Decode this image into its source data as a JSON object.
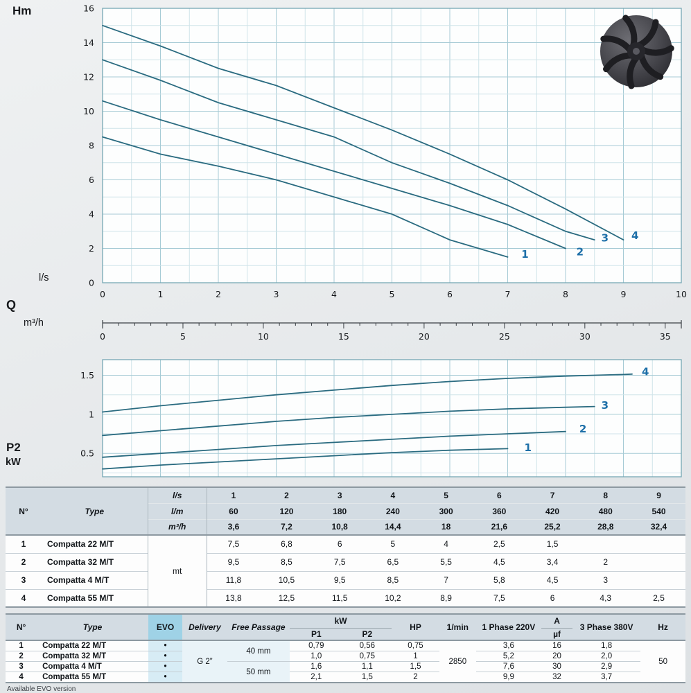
{
  "colors": {
    "curve": "#2a6b80",
    "curve_label": "#1d6fa8",
    "grid_major": "#a6cbd5",
    "grid_minor": "#cfe3e9",
    "axis": "#76a7b4",
    "evo_header": "#9fd2e6"
  },
  "charts": {
    "labels": {
      "head_axis": "Hm",
      "flow_primary_unit": "l/s",
      "flow_symbol": "Q",
      "flow_secondary_unit": "m³/h",
      "power_axis": "P2",
      "power_unit": "kW"
    }
  },
  "chart_data": [
    {
      "type": "line",
      "id": "head",
      "title": "Head vs flow",
      "ylabel": "Hm",
      "xlabel": "Q (l/s)",
      "grid": true,
      "legend_position": "end-of-curve",
      "xlim": [
        0,
        10
      ],
      "ylim": [
        0,
        16
      ],
      "x_major": 1,
      "x_minor": 0.5,
      "y_major": 2,
      "y_minor": 1,
      "x_ticks": [
        0,
        1,
        2,
        3,
        4,
        5,
        6,
        7,
        8,
        9,
        10
      ],
      "x_tick_labels": [
        "0",
        "1",
        "2",
        "3",
        "4",
        "5",
        "6",
        "7",
        "8",
        "9",
        "10"
      ],
      "y_ticks": [
        0,
        2,
        4,
        6,
        8,
        10,
        12,
        14,
        16
      ],
      "y_tick_labels": [
        "0",
        "2",
        "4",
        "6",
        "8",
        "10",
        "12",
        "14",
        "16"
      ],
      "secondary_x": {
        "label": "m³/h",
        "factor": 3.6,
        "major": 5,
        "minor": 1,
        "tick_labels": [
          "0",
          "5",
          "10",
          "15",
          "20",
          "25",
          "30",
          "35"
        ]
      },
      "series": [
        {
          "name": "1",
          "x": [
            0,
            1,
            2,
            3,
            4,
            5,
            6,
            7
          ],
          "y": [
            8.5,
            7.5,
            6.8,
            6,
            5,
            4,
            2.5,
            1.5
          ],
          "label_at": [
            7.3,
            1.45
          ]
        },
        {
          "name": "2",
          "x": [
            0,
            1,
            2,
            3,
            4,
            5,
            6,
            7,
            8
          ],
          "y": [
            10.6,
            9.5,
            8.5,
            7.5,
            6.5,
            5.5,
            4.5,
            3.4,
            2
          ],
          "label_at": [
            8.25,
            1.6
          ]
        },
        {
          "name": "3",
          "x": [
            0,
            1,
            2,
            3,
            4,
            5,
            6,
            7,
            8,
            8.5
          ],
          "y": [
            13,
            11.8,
            10.5,
            9.5,
            8.5,
            7,
            5.8,
            4.5,
            3,
            2.5
          ],
          "label_at": [
            8.68,
            2.4
          ]
        },
        {
          "name": "4",
          "x": [
            0,
            1,
            2,
            3,
            4,
            5,
            6,
            7,
            8,
            9
          ],
          "y": [
            15,
            13.8,
            12.5,
            11.5,
            10.2,
            8.9,
            7.5,
            6,
            4.3,
            2.5
          ],
          "label_at": [
            9.2,
            2.55
          ]
        }
      ]
    },
    {
      "type": "line",
      "id": "power",
      "title": "Shaft power P2 vs flow",
      "ylabel": "P2 kW",
      "grid": true,
      "legend_position": "end-of-curve",
      "xlim": [
        0,
        10
      ],
      "ylim": [
        0.2,
        1.7
      ],
      "x_major": 1,
      "x_minor": 0.5,
      "y_major": 0.5,
      "y_minor": 0.25,
      "y_ticks": [
        0.5,
        1,
        1.5
      ],
      "y_tick_labels": [
        "0.5",
        "1",
        "1.5"
      ],
      "series": [
        {
          "name": "1",
          "x": [
            0,
            1,
            2,
            3,
            4,
            5,
            6,
            7
          ],
          "y": [
            0.3,
            0.35,
            0.39,
            0.43,
            0.47,
            0.51,
            0.54,
            0.56
          ],
          "label_at": [
            7.35,
            0.53
          ]
        },
        {
          "name": "2",
          "x": [
            0,
            1,
            2,
            3,
            4,
            5,
            6,
            7,
            8
          ],
          "y": [
            0.45,
            0.5,
            0.55,
            0.6,
            0.64,
            0.68,
            0.72,
            0.75,
            0.78
          ],
          "label_at": [
            8.3,
            0.77
          ]
        },
        {
          "name": "3",
          "x": [
            0,
            1,
            2,
            3,
            4,
            5,
            6,
            7,
            8,
            8.5
          ],
          "y": [
            0.73,
            0.79,
            0.85,
            0.91,
            0.96,
            1,
            1.04,
            1.07,
            1.09,
            1.1
          ],
          "label_at": [
            8.68,
            1.07
          ]
        },
        {
          "name": "4",
          "x": [
            0,
            1,
            2,
            3,
            4,
            5,
            6,
            7,
            8,
            9,
            9.15
          ],
          "y": [
            1.03,
            1.11,
            1.18,
            1.25,
            1.31,
            1.37,
            1.42,
            1.46,
            1.49,
            1.51,
            1.515
          ],
          "label_at": [
            9.38,
            1.5
          ]
        }
      ]
    }
  ],
  "table1": {
    "col_headers": {
      "no": "N°",
      "type": "Type",
      "unit_rows": [
        "l/s",
        "l/m",
        "m³/h"
      ],
      "ls": [
        "1",
        "2",
        "3",
        "4",
        "5",
        "6",
        "7",
        "8",
        "9"
      ],
      "lm": [
        "60",
        "120",
        "180",
        "240",
        "300",
        "360",
        "420",
        "480",
        "540"
      ],
      "m3h": [
        "3,6",
        "7,2",
        "10,8",
        "14,4",
        "18",
        "21,6",
        "25,2",
        "28,8",
        "32,4"
      ]
    },
    "unit_label": "mt",
    "rows": [
      {
        "no": "1",
        "type": "Compatta 22 M/T",
        "values": [
          "7,5",
          "6,8",
          "6",
          "5",
          "4",
          "2,5",
          "1,5",
          "",
          ""
        ]
      },
      {
        "no": "2",
        "type": "Compatta 32 M/T",
        "values": [
          "9,5",
          "8,5",
          "7,5",
          "6,5",
          "5,5",
          "4,5",
          "3,4",
          "2",
          ""
        ]
      },
      {
        "no": "3",
        "type": "Compatta 4 M/T",
        "values": [
          "11,8",
          "10,5",
          "9,5",
          "8,5",
          "7",
          "5,8",
          "4,5",
          "3",
          ""
        ]
      },
      {
        "no": "4",
        "type": "Compatta 55 M/T",
        "values": [
          "13,8",
          "12,5",
          "11,5",
          "10,2",
          "8,9",
          "7,5",
          "6",
          "4,3",
          "2,5"
        ]
      }
    ]
  },
  "table2": {
    "headers": {
      "no": "N°",
      "type": "Type",
      "evo": "EVO",
      "delivery": "Delivery",
      "free_passage": "Free Passage",
      "kw": "kW",
      "p1": "P1",
      "p2": "P2",
      "hp": "HP",
      "rpm": "1/min",
      "phase1": "1 Phase 220V",
      "amp": "A",
      "uf": "µf",
      "phase3": "3 Phase 380V",
      "hz": "Hz"
    },
    "shared": {
      "delivery": "G 2”",
      "rpm": "2850",
      "hz": "50",
      "free_passage": [
        {
          "label": "40 mm",
          "rows": 2
        },
        {
          "label": "50 mm",
          "rows": 2
        }
      ]
    },
    "rows": [
      {
        "no": "1",
        "type": "Compatta 22 M/T",
        "evo": "•",
        "p1": "0,79",
        "p2": "0,56",
        "hp": "0,75",
        "a220": "3,6",
        "uf": "16",
        "a380": "1,8"
      },
      {
        "no": "2",
        "type": "Compatta 32 M/T",
        "evo": "•",
        "p1": "1,0",
        "p2": "0,75",
        "hp": "1",
        "a220": "5,2",
        "uf": "20",
        "a380": "2,0"
      },
      {
        "no": "3",
        "type": "Compatta 4 M/T",
        "evo": "•",
        "p1": "1,6",
        "p2": "1,1",
        "hp": "1,5",
        "a220": "7,6",
        "uf": "30",
        "a380": "2,9"
      },
      {
        "no": "4",
        "type": "Compatta 55 M/T",
        "evo": "•",
        "p1": "2,1",
        "p2": "1,5",
        "hp": "2",
        "a220": "9,9",
        "uf": "32",
        "a380": "3,7"
      }
    ]
  },
  "footnote": "Available EVO version"
}
